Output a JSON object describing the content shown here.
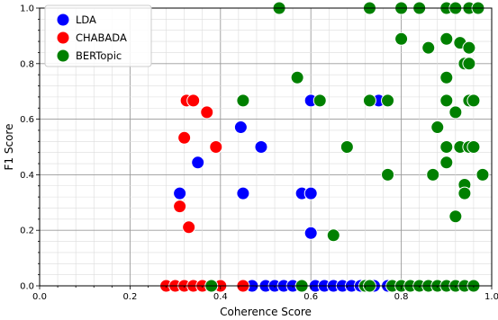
{
  "chart_data": {
    "type": "scatter",
    "xlabel": "Coherence Score",
    "ylabel": "F1 Score",
    "xlim": [
      0.0,
      1.0
    ],
    "ylim": [
      0.0,
      1.0
    ],
    "xticks": [
      "0.0",
      "0.2",
      "0.4",
      "0.6",
      "0.8",
      "1.0"
    ],
    "yticks": [
      "0.0",
      "0.2",
      "0.4",
      "0.6",
      "0.8",
      "1.0"
    ],
    "grid": "major and minor",
    "legend_position": "top-left",
    "series": [
      {
        "name": "LDA",
        "color": "#0000ff",
        "points": [
          [
            0.37,
            0.625
          ],
          [
            0.35,
            0.444
          ],
          [
            0.31,
            0.333
          ],
          [
            0.445,
            0.571
          ],
          [
            0.49,
            0.5
          ],
          [
            0.45,
            0.333
          ],
          [
            0.58,
            0.333
          ],
          [
            0.6,
            0.333
          ],
          [
            0.6,
            0.667
          ],
          [
            0.6,
            0.19
          ],
          [
            0.75,
            0.667
          ],
          [
            0.47,
            0.0
          ],
          [
            0.5,
            0.0
          ],
          [
            0.52,
            0.0
          ],
          [
            0.54,
            0.0
          ],
          [
            0.56,
            0.0
          ],
          [
            0.58,
            0.0
          ],
          [
            0.61,
            0.0
          ],
          [
            0.63,
            0.0
          ],
          [
            0.65,
            0.0
          ],
          [
            0.67,
            0.0
          ],
          [
            0.69,
            0.0
          ],
          [
            0.71,
            0.0
          ],
          [
            0.74,
            0.0
          ],
          [
            0.77,
            0.0
          ],
          [
            0.8,
            0.0
          ],
          [
            0.84,
            0.0
          ],
          [
            0.88,
            0.0
          ],
          [
            0.92,
            0.0
          ]
        ]
      },
      {
        "name": "CHABADA",
        "color": "#ff0000",
        "points": [
          [
            0.325,
            0.667
          ],
          [
            0.34,
            0.667
          ],
          [
            0.37,
            0.625
          ],
          [
            0.32,
            0.533
          ],
          [
            0.39,
            0.5
          ],
          [
            0.31,
            0.286
          ],
          [
            0.33,
            0.211
          ],
          [
            0.28,
            0.0
          ],
          [
            0.3,
            0.0
          ],
          [
            0.32,
            0.0
          ],
          [
            0.34,
            0.0
          ],
          [
            0.36,
            0.0
          ],
          [
            0.38,
            0.0
          ],
          [
            0.4,
            0.0
          ],
          [
            0.45,
            0.0
          ]
        ]
      },
      {
        "name": "BERTopic",
        "color": "#008000",
        "points": [
          [
            0.53,
            1.0
          ],
          [
            0.73,
            1.0
          ],
          [
            0.8,
            1.0
          ],
          [
            0.84,
            1.0
          ],
          [
            0.9,
            1.0
          ],
          [
            0.92,
            1.0
          ],
          [
            0.95,
            1.0
          ],
          [
            0.97,
            1.0
          ],
          [
            0.8,
            0.889
          ],
          [
            0.9,
            0.889
          ],
          [
            0.86,
            0.857
          ],
          [
            0.93,
            0.875
          ],
          [
            0.95,
            0.857
          ],
          [
            0.94,
            0.8
          ],
          [
            0.95,
            0.8
          ],
          [
            0.9,
            0.75
          ],
          [
            0.57,
            0.75
          ],
          [
            0.45,
            0.667
          ],
          [
            0.62,
            0.667
          ],
          [
            0.73,
            0.667
          ],
          [
            0.77,
            0.667
          ],
          [
            0.9,
            0.667
          ],
          [
            0.95,
            0.667
          ],
          [
            0.96,
            0.667
          ],
          [
            0.92,
            0.625
          ],
          [
            0.88,
            0.571
          ],
          [
            0.68,
            0.5
          ],
          [
            0.9,
            0.5
          ],
          [
            0.93,
            0.5
          ],
          [
            0.95,
            0.5
          ],
          [
            0.96,
            0.5
          ],
          [
            0.9,
            0.444
          ],
          [
            0.87,
            0.4
          ],
          [
            0.77,
            0.4
          ],
          [
            0.98,
            0.4
          ],
          [
            0.94,
            0.364
          ],
          [
            0.94,
            0.333
          ],
          [
            0.92,
            0.25
          ],
          [
            0.65,
            0.182
          ],
          [
            0.38,
            0.0
          ],
          [
            0.58,
            0.0
          ],
          [
            0.72,
            0.0
          ],
          [
            0.73,
            0.0
          ],
          [
            0.78,
            0.0
          ],
          [
            0.8,
            0.0
          ],
          [
            0.82,
            0.0
          ],
          [
            0.84,
            0.0
          ],
          [
            0.86,
            0.0
          ],
          [
            0.88,
            0.0
          ],
          [
            0.9,
            0.0
          ],
          [
            0.92,
            0.0
          ],
          [
            0.94,
            0.0
          ],
          [
            0.96,
            0.0
          ]
        ]
      }
    ]
  }
}
